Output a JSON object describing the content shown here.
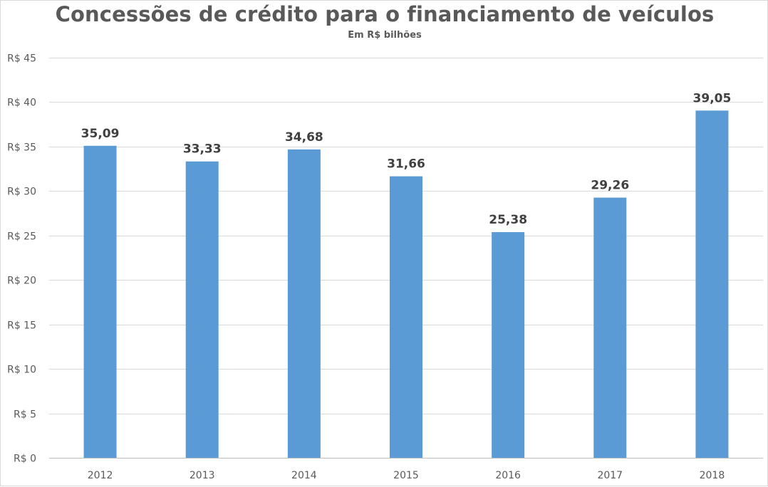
{
  "chart_data": {
    "type": "bar",
    "title": "Concessões de crédito para o financiamento de veículos",
    "subtitle": "Em R$ bilhões",
    "xlabel": "",
    "ylabel": "",
    "categories": [
      "2012",
      "2013",
      "2014",
      "2015",
      "2016",
      "2017",
      "2018"
    ],
    "values": [
      35.09,
      33.33,
      34.68,
      31.66,
      25.38,
      29.26,
      39.05
    ],
    "data_labels": [
      "35,09",
      "33,33",
      "34,68",
      "31,66",
      "25,38",
      "29,26",
      "39,05"
    ],
    "ylim": [
      0,
      45
    ],
    "yticks": [
      0,
      5,
      10,
      15,
      20,
      25,
      30,
      35,
      40,
      45
    ],
    "ytick_labels": [
      "R$ 0",
      "R$ 5",
      "R$ 10",
      "R$ 15",
      "R$ 20",
      "R$ 25",
      "R$ 30",
      "R$ 35",
      "R$ 40",
      "R$ 45"
    ],
    "grid": true,
    "legend": "none",
    "colors": {
      "bar": "#5b9bd5",
      "grid": "#d9d9d9",
      "text": "#595959",
      "label": "#404040"
    }
  }
}
